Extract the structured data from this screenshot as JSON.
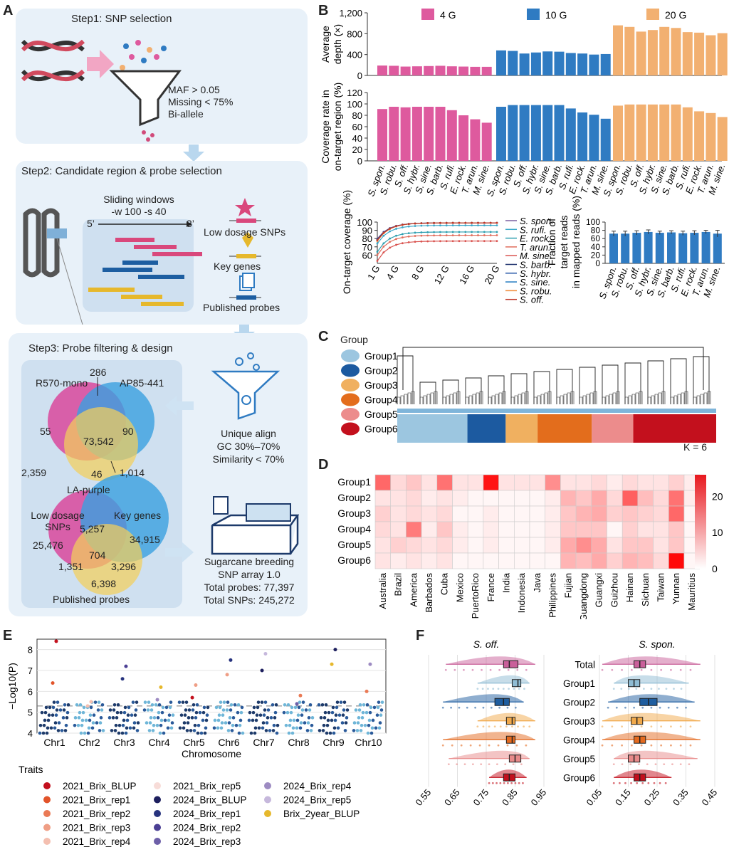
{
  "panels": {
    "a": "A",
    "b": "B",
    "c": "C",
    "d": "D",
    "e": "E",
    "f": "F"
  },
  "panelA": {
    "step1": {
      "title": "Step1: SNP selection",
      "criteria": [
        "MAF > 0.05",
        "Missing < 75%",
        "Bi-allele"
      ]
    },
    "step2": {
      "title": "Step2: Candidate region & probe selection",
      "window_title": "Sliding windows",
      "window_params": "-w 100 -s 40",
      "five_prime": "5’",
      "three_prime": "3’",
      "items": [
        "Low dosage SNPs",
        "Key genes",
        "Published probes"
      ]
    },
    "step3": {
      "title": "Step3: Probe filtering & design",
      "venn1": {
        "labels": [
          "R570-mono",
          "AP85-441",
          "LA-purple"
        ],
        "values": [
          "286",
          "55",
          "90",
          "73,542",
          "2,359",
          "46",
          "1,014"
        ]
      },
      "filters": [
        "Unique align",
        "GC 30%–70%",
        "Similarity < 70%"
      ],
      "venn2": {
        "labels": [
          "Low dosage SNPs",
          "Key genes",
          "Published probes"
        ],
        "label_lines": [
          "Low dosage",
          "SNPs"
        ],
        "values": [
          "25,476",
          "5,257",
          "34,915",
          "704",
          "1,351",
          "3,296",
          "6,398"
        ]
      },
      "array": [
        "Sugarcane breeding",
        "SNP array 1.0",
        "Total probes: 77,397",
        "Total SNPs: 245,272"
      ]
    }
  },
  "chart_data": [
    {
      "type": "bar",
      "id": "B-depth",
      "ylabel": "Average depth (×)",
      "ylim": [
        0,
        1200
      ],
      "yticks": [
        "0",
        "400",
        "800",
        "1,200"
      ],
      "legend": [
        "4 G",
        "10 G",
        "20 G"
      ],
      "colors": [
        "#de5a9e",
        "#2f7bc2",
        "#f2b071"
      ],
      "categories": [
        "S. spon.",
        "S. robu.",
        "S. off.",
        "S. hybr.",
        "S. sine.",
        "S. barb.",
        "S. rufi.",
        "E. rock.",
        "T. arun.",
        "M. sine."
      ],
      "series": [
        {
          "name": "4 G",
          "values": [
            190,
            185,
            170,
            175,
            180,
            185,
            175,
            170,
            165,
            165
          ]
        },
        {
          "name": "10 G",
          "values": [
            480,
            470,
            420,
            440,
            460,
            455,
            430,
            420,
            400,
            410
          ]
        },
        {
          "name": "20 G",
          "values": [
            960,
            930,
            840,
            870,
            930,
            910,
            830,
            820,
            770,
            810
          ]
        }
      ]
    },
    {
      "type": "bar",
      "id": "B-coverage",
      "ylabel": "Coverage rate in on-target region (%)",
      "ylim": [
        0,
        120
      ],
      "yticks": [
        "0",
        "20",
        "40",
        "60",
        "80",
        "100",
        "120"
      ],
      "categories": [
        "S. spon.",
        "S. robu.",
        "S. off.",
        "S. hybr.",
        "S. sine.",
        "S. barb.",
        "S. rufi.",
        "E. rock.",
        "T. arun.",
        "M. sine."
      ],
      "series": [
        {
          "name": "4 G",
          "values": [
            91,
            95,
            94,
            95,
            95,
            95,
            89,
            80,
            73,
            67
          ]
        },
        {
          "name": "10 G",
          "values": [
            95,
            98,
            98,
            98,
            98,
            98,
            92,
            85,
            81,
            74
          ]
        },
        {
          "name": "20 G",
          "values": [
            97,
            99,
            99,
            99,
            99,
            99,
            94,
            87,
            84,
            77
          ]
        }
      ]
    },
    {
      "type": "line",
      "id": "B-ontarget",
      "ylabel": "On-target coverage (%)",
      "ylim": [
        50,
        100
      ],
      "yticks": [
        "60",
        "70",
        "80",
        "90",
        "100"
      ],
      "xticks": [
        "1 G",
        "4 G",
        "8 G",
        "12 G",
        "16 G",
        "20 G"
      ],
      "x": [
        1,
        2,
        3,
        4,
        5,
        6,
        7,
        8,
        9,
        10,
        11,
        12,
        13,
        14,
        15,
        16,
        17,
        18,
        19,
        20
      ],
      "series": [
        {
          "name": "S. spon.",
          "end": 99,
          "start": 80,
          "color": "#7b5fa0"
        },
        {
          "name": "S. rufi.",
          "end": 96,
          "start": 74,
          "color": "#3ba8c9"
        },
        {
          "name": "E. rock.",
          "end": 88,
          "start": 64,
          "color": "#2f9fb0"
        },
        {
          "name": "T. arun.",
          "end": 84,
          "start": 60,
          "color": "#e06e5d"
        },
        {
          "name": "M. sine.",
          "end": 77,
          "start": 53,
          "color": "#d9534f"
        },
        {
          "name": "S. barb.",
          "end": 99,
          "start": 79,
          "color": "#1b2f6b"
        },
        {
          "name": "S. hybr.",
          "end": 99,
          "start": 78,
          "color": "#2a5aa8"
        },
        {
          "name": "S. sine.",
          "end": 99,
          "start": 78,
          "color": "#1f7ac0"
        },
        {
          "name": "S. robu.",
          "end": 99,
          "start": 77,
          "color": "#f08c3a"
        },
        {
          "name": "S. off.",
          "end": 99,
          "start": 78,
          "color": "#c0392b"
        }
      ]
    },
    {
      "type": "bar",
      "id": "B-fraction",
      "ylabel": "Fraction of target reads in mapped reads (%)",
      "ylim": [
        0,
        100
      ],
      "yticks": [
        "0",
        "20",
        "40",
        "60",
        "80",
        "100"
      ],
      "categories": [
        "S. spon.",
        "S. robu.",
        "S. off.",
        "S. hybr.",
        "S. sine.",
        "S. barb.",
        "S. rufi.",
        "E. rock.",
        "T. arun.",
        "M. sine."
      ],
      "values": [
        72,
        72,
        74,
        76,
        74,
        75,
        73,
        74,
        76,
        72
      ],
      "errors": [
        6,
        6,
        5,
        5,
        4,
        4,
        5,
        5,
        4,
        8
      ],
      "color": "#2f7bc2"
    },
    {
      "type": "heatmap",
      "id": "D",
      "rows": [
        "Group1",
        "Group2",
        "Group3",
        "Group4",
        "Group5",
        "Group6"
      ],
      "cols": [
        "Australia",
        "Brazil",
        "America",
        "Barbados",
        "Cuba",
        "Mexico",
        "PuertoRico",
        "France",
        "India",
        "Indonesia",
        "Java",
        "Philippines",
        "Fujian",
        "Guangdong",
        "Guangxi",
        "Guizhou",
        "Hainan",
        "Sichuan",
        "Taiwan",
        "Yunnan",
        "Mauritius"
      ],
      "values": [
        [
          16,
          4,
          6,
          3,
          15,
          3,
          3,
          25,
          3,
          3,
          3,
          12,
          3,
          3,
          4,
          2,
          4,
          3,
          3,
          5,
          2
        ],
        [
          3,
          3,
          4,
          2,
          3,
          2,
          1,
          1,
          1,
          1,
          1,
          2,
          8,
          6,
          9,
          4,
          17,
          7,
          4,
          15,
          2
        ],
        [
          5,
          3,
          4,
          3,
          4,
          1,
          1,
          2,
          1,
          1,
          1,
          2,
          6,
          8,
          9,
          5,
          6,
          5,
          4,
          16,
          1
        ],
        [
          4,
          3,
          14,
          2,
          6,
          2,
          1,
          2,
          1,
          1,
          1,
          2,
          6,
          6,
          6,
          1,
          5,
          3,
          3,
          6,
          1
        ],
        [
          3,
          5,
          4,
          3,
          4,
          2,
          1,
          2,
          1,
          1,
          1,
          2,
          9,
          12,
          9,
          3,
          6,
          6,
          3,
          6,
          1
        ],
        [
          3,
          2,
          3,
          2,
          3,
          1,
          1,
          1,
          1,
          1,
          1,
          1,
          8,
          7,
          9,
          5,
          8,
          7,
          4,
          26,
          1
        ]
      ],
      "scale": [
        "0",
        "10",
        "20"
      ],
      "scale_max": 26
    },
    {
      "type": "scatter",
      "id": "E",
      "ylabel": "−Log10(P)",
      "xlabel": "Chromosome",
      "ylim": [
        4,
        8.5
      ],
      "yticks": [
        "4",
        "5",
        "6",
        "7",
        "8"
      ],
      "categories": [
        "Chr1",
        "Chr2",
        "Chr3",
        "Chr4",
        "Chr5",
        "Chr6",
        "Chr7",
        "Chr8",
        "Chr9",
        "Chr10"
      ],
      "threshold": 5.3,
      "peaks": [
        [
          8.4,
          6.4
        ],
        [
          5.5,
          5.3
        ],
        [
          7.2,
          6.6
        ],
        [
          6.2,
          5.6
        ],
        [
          6.3,
          5.7
        ],
        [
          7.5,
          6.8
        ],
        [
          7.8,
          7.0
        ],
        [
          5.8,
          5.4
        ],
        [
          8.0,
          7.3
        ],
        [
          7.3,
          6.0
        ]
      ]
    },
    {
      "type": "box",
      "id": "F",
      "panels": [
        "S. off.",
        "S. spon."
      ],
      "rows": [
        "Total",
        "Group1",
        "Group2",
        "Group3",
        "Group4",
        "Group5",
        "Group6"
      ],
      "colors": [
        "#c9609a",
        "#8fbcd4",
        "#1f5ea0",
        "#f1a94b",
        "#e46a1f",
        "#e88a8a",
        "#c3101d"
      ],
      "xticks_left": [
        "0.55",
        "0.65",
        "0.75",
        "0.85",
        "0.95"
      ],
      "xticks_right": [
        "0.05",
        "0.15",
        "0.25",
        "0.35",
        "0.45"
      ],
      "left": {
        "median": [
          0.83,
          0.86,
          0.81,
          0.84,
          0.84,
          0.85,
          0.83
        ],
        "q1": [
          0.81,
          0.84,
          0.78,
          0.82,
          0.82,
          0.83,
          0.81
        ],
        "q3": [
          0.86,
          0.87,
          0.83,
          0.85,
          0.85,
          0.87,
          0.85
        ],
        "min": [
          0.61,
          0.72,
          0.6,
          0.72,
          0.6,
          0.62,
          0.76
        ],
        "max": [
          0.92,
          0.9,
          0.88,
          0.92,
          0.92,
          0.9,
          0.89
        ]
      },
      "right": {
        "median": [
          0.19,
          0.17,
          0.22,
          0.18,
          0.19,
          0.17,
          0.19
        ],
        "q1": [
          0.17,
          0.15,
          0.19,
          0.16,
          0.17,
          0.15,
          0.17
        ],
        "q3": [
          0.21,
          0.19,
          0.25,
          0.2,
          0.21,
          0.19,
          0.21
        ],
        "min": [
          0.06,
          0.1,
          0.08,
          0.06,
          0.06,
          0.1,
          0.1
        ],
        "max": [
          0.4,
          0.36,
          0.38,
          0.4,
          0.4,
          0.39,
          0.3
        ]
      }
    }
  ],
  "panelC": {
    "title": "Group",
    "groups": [
      "Group1",
      "Group2",
      "Group3",
      "Group4",
      "Group5",
      "Group6"
    ],
    "colors": [
      "#9cc6e0",
      "#1c5aa0",
      "#f0b060",
      "#e36d1c",
      "#ec8c8c",
      "#c3101d"
    ],
    "k": "K = 6"
  },
  "traits": {
    "title": "Traits",
    "items": [
      "2021_Brix_BLUP",
      "2021_Brix_rep1",
      "2021_Brix_rep2",
      "2021_Brix_rep3",
      "2021_Brix_rep4",
      "2021_Brix_rep5",
      "2024_Brix_BLUP",
      "2024_Brix_rep1",
      "2024_Brix_rep2",
      "2024_Brix_rep3",
      "2024_Brix_rep4",
      "2024_Brix_rep5",
      "Brix_2year_BLUP"
    ],
    "colors": [
      "#c3101d",
      "#e2542a",
      "#ea7a55",
      "#ef9e85",
      "#f4bfb0",
      "#f7dcd8",
      "#1d1f5e",
      "#27337e",
      "#4b3f94",
      "#6d5fa8",
      "#9d8bc2",
      "#c6b8dc",
      "#e6b82c"
    ]
  }
}
